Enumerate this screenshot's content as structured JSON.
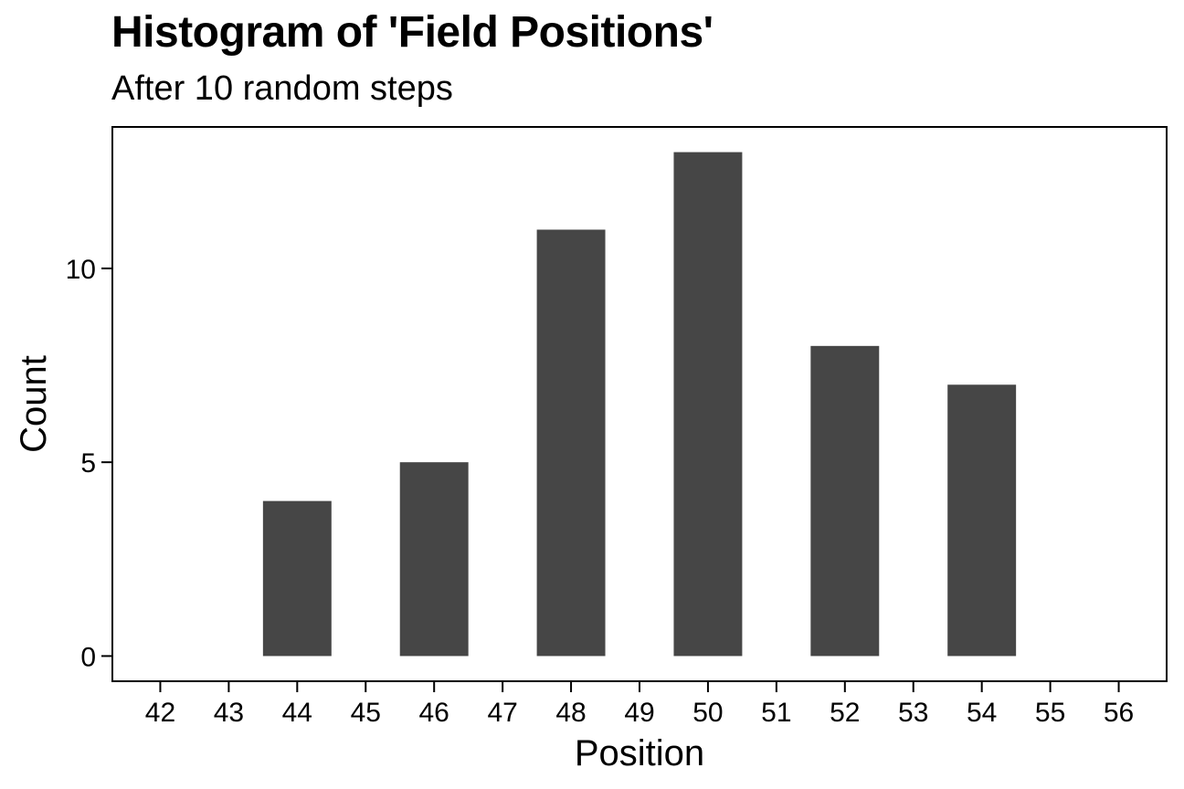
{
  "chart_data": {
    "type": "bar",
    "title": "Histogram of 'Field Positions'",
    "subtitle": "After 10 random steps",
    "xlabel": "Position",
    "ylabel": "Count",
    "x_ticks": [
      42,
      43,
      44,
      45,
      46,
      47,
      48,
      49,
      50,
      51,
      52,
      53,
      54,
      55,
      56
    ],
    "y_ticks": [
      0,
      5,
      10
    ],
    "categories": [
      44,
      46,
      48,
      50,
      52,
      54
    ],
    "values": [
      4,
      5,
      11,
      13,
      8,
      7
    ],
    "bar_width": 1,
    "xlim": [
      41.3,
      56.7
    ],
    "ylim": [
      -0.65,
      13.65
    ],
    "grid": false,
    "bar_color": "#464646",
    "frame_color": "#000000"
  }
}
